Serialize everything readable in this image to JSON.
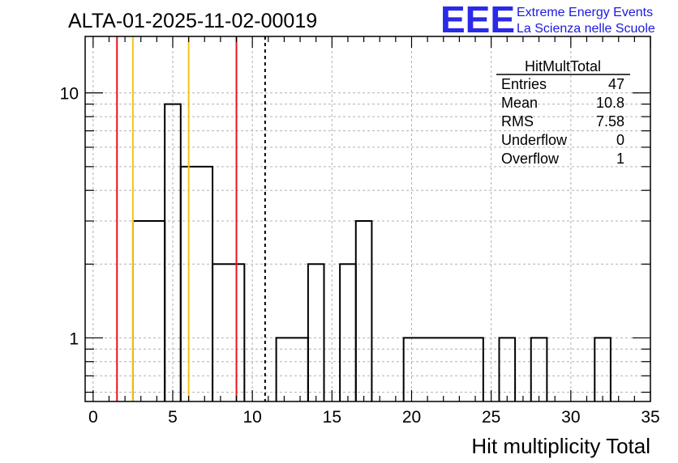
{
  "chart_data": {
    "type": "bar",
    "title": "ALTA-01-2025-11-02-00019",
    "xlabel": "Hit multiplicity Total",
    "ylabel": "",
    "xlim": [
      -0.5,
      35
    ],
    "ylim": [
      0.55,
      17
    ],
    "log_y": true,
    "grid": true,
    "x_ticks": [
      0,
      5,
      10,
      15,
      20,
      25,
      30,
      35
    ],
    "y_ticks": [
      1,
      10
    ],
    "bins": [
      {
        "lo": 2.5,
        "hi": 4.5,
        "value": 3
      },
      {
        "lo": 4.5,
        "hi": 5.5,
        "value": 9
      },
      {
        "lo": 5.5,
        "hi": 7.5,
        "value": 5
      },
      {
        "lo": 7.5,
        "hi": 9.5,
        "value": 2
      },
      {
        "lo": 11.5,
        "hi": 13.5,
        "value": 1
      },
      {
        "lo": 13.5,
        "hi": 14.5,
        "value": 2
      },
      {
        "lo": 15.5,
        "hi": 16.5,
        "value": 2
      },
      {
        "lo": 16.5,
        "hi": 17.5,
        "value": 3
      },
      {
        "lo": 19.5,
        "hi": 24.5,
        "value": 1
      },
      {
        "lo": 25.5,
        "hi": 26.5,
        "value": 1
      },
      {
        "lo": 27.5,
        "hi": 28.5,
        "value": 1
      },
      {
        "lo": 31.5,
        "hi": 32.5,
        "value": 1
      }
    ],
    "markers": [
      {
        "x": 1.5,
        "color": "#e8161c",
        "style": "solid"
      },
      {
        "x": 2.5,
        "color": "#f5c518",
        "style": "solid"
      },
      {
        "x": 6.0,
        "color": "#f5c518",
        "style": "solid"
      },
      {
        "x": 9.0,
        "color": "#e8161c",
        "style": "solid"
      },
      {
        "x": 10.8,
        "color": "#000000",
        "style": "dashed"
      }
    ],
    "stats_box": {
      "title": "HitMultTotal",
      "rows": [
        {
          "label": "Entries",
          "value": "47"
        },
        {
          "label": "Mean",
          "value": "10.8"
        },
        {
          "label": "RMS",
          "value": "7.58"
        },
        {
          "label": "Underflow",
          "value": "0"
        },
        {
          "label": "Overflow",
          "value": "1"
        }
      ]
    },
    "logo": {
      "mark": "EEE",
      "line1": "Extreme Energy Events",
      "line2": "La Scienza nelle Scuole",
      "color": "#2a2ae8"
    }
  }
}
